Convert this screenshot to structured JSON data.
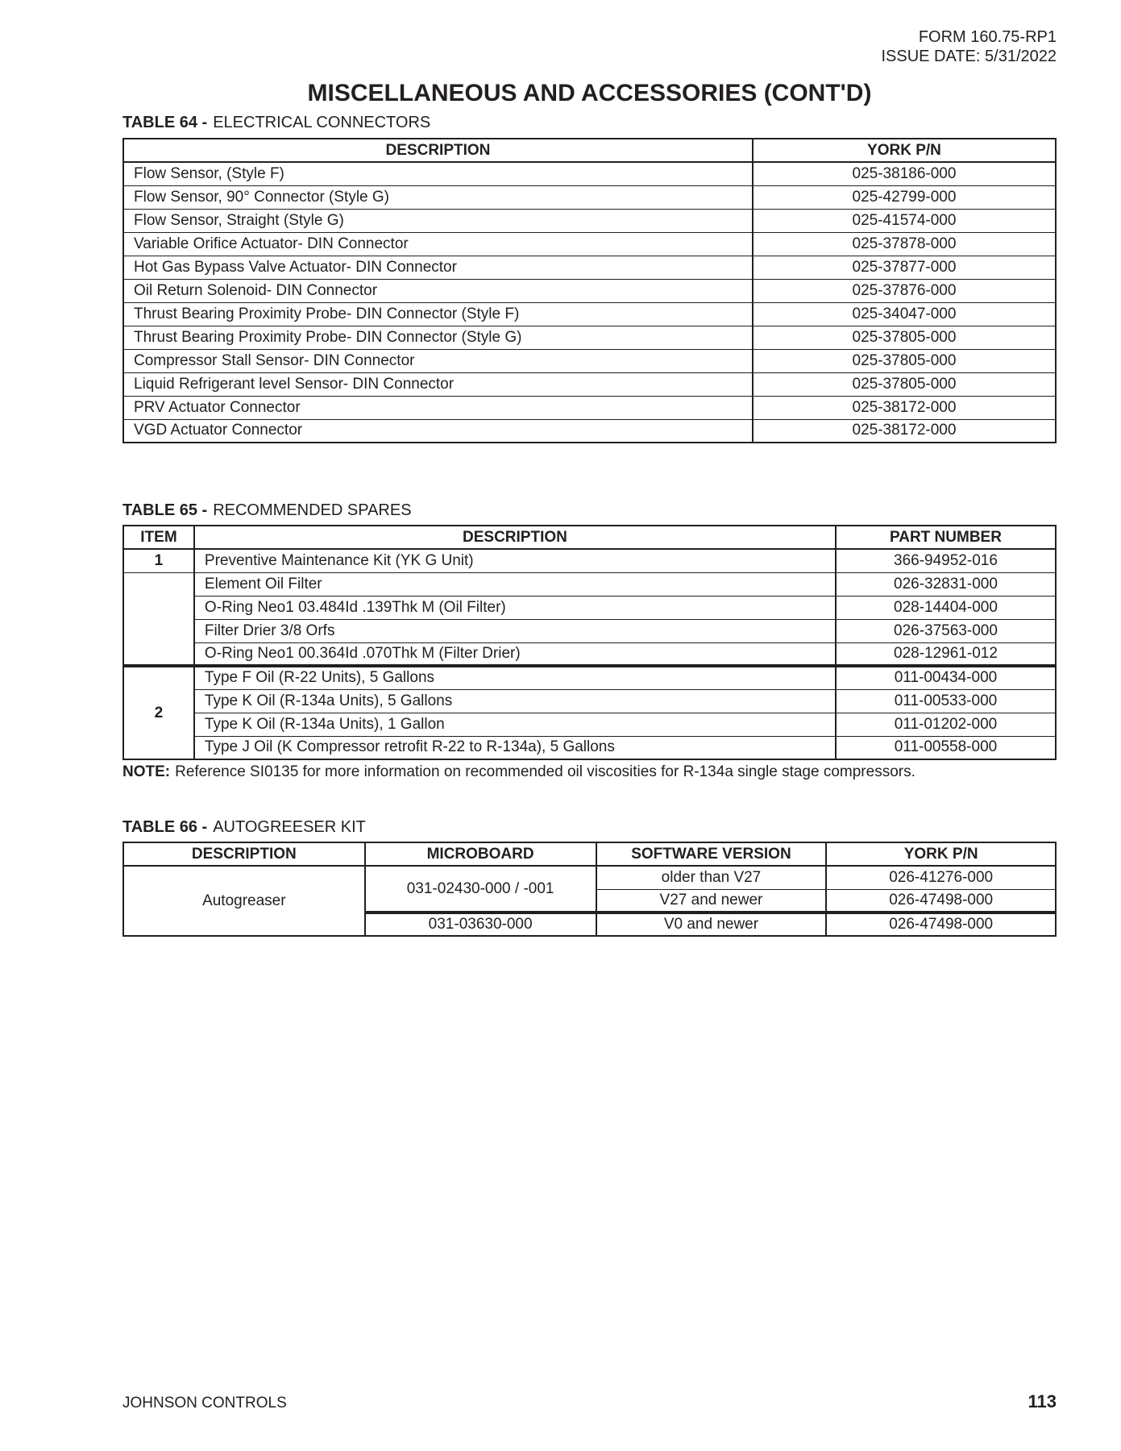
{
  "header": {
    "form": "FORM 160.75-RP1",
    "issue_date": "ISSUE DATE: 5/31/2022"
  },
  "title": "MISCELLANEOUS AND ACCESSORIES (CONT'D)",
  "table64": {
    "caption_bold": "TABLE 64 -",
    "caption_rest": "ELECTRICAL CONNECTORS",
    "headers": [
      "DESCRIPTION",
      "YORK P/N"
    ],
    "rows": [
      [
        "Flow Sensor, (Style F)",
        "025-38186-000"
      ],
      [
        "Flow Sensor, 90° Connector (Style G)",
        "025-42799-000"
      ],
      [
        "Flow Sensor, Straight (Style G)",
        "025-41574-000"
      ],
      [
        "Variable Orifice Actuator- DIN Connector",
        "025-37878-000"
      ],
      [
        "Hot Gas Bypass Valve Actuator- DIN Connector",
        "025-37877-000"
      ],
      [
        "Oil Return Solenoid- DIN Connector",
        "025-37876-000"
      ],
      [
        "Thrust Bearing Proximity Probe- DIN Connector (Style F)",
        "025-34047-000"
      ],
      [
        "Thrust Bearing Proximity Probe- DIN Connector (Style G)",
        "025-37805-000"
      ],
      [
        "Compressor Stall Sensor- DIN Connector",
        "025-37805-000"
      ],
      [
        "Liquid Refrigerant level Sensor- DIN Connector",
        "025-37805-000"
      ],
      [
        "PRV Actuator Connector",
        "025-38172-000"
      ],
      [
        "VGD Actuator Connector",
        "025-38172-000"
      ]
    ]
  },
  "table65": {
    "caption_bold": "TABLE 65 -",
    "caption_rest": "RECOMMENDED SPARES",
    "headers": [
      "ITEM",
      "DESCRIPTION",
      "PART NUMBER"
    ],
    "group1": {
      "item": "1",
      "rows": [
        [
          "Preventive Maintenance Kit (YK G Unit)",
          "366-94952-016"
        ],
        [
          "Element Oil Filter",
          "026-32831-000"
        ],
        [
          "O-Ring Neo1 03.484Id .139Thk M (Oil Filter)",
          "028-14404-000"
        ],
        [
          "Filter Drier 3/8 Orfs",
          "026-37563-000"
        ],
        [
          "O-Ring Neo1 00.364Id .070Thk M (Filter Drier)",
          "028-12961-012"
        ]
      ]
    },
    "group2": {
      "item": "2",
      "rows": [
        [
          "Type F Oil (R-22 Units), 5 Gallons",
          "011-00434-000"
        ],
        [
          "Type K Oil (R-134a Units), 5 Gallons",
          "011-00533-000"
        ],
        [
          "Type K Oil (R-134a Units), 1 Gallon",
          "011-01202-000"
        ],
        [
          "Type J Oil (K Compressor retrofit R-22 to R-134a), 5 Gallons",
          "011-00558-000"
        ]
      ]
    }
  },
  "note": {
    "label": "NOTE:",
    "text": "Reference SI0135 for more information on recommended oil viscosities for R-134a single stage compressors."
  },
  "table66": {
    "caption_bold": "TABLE 66 -",
    "caption_rest": "AUTOGREESER KIT",
    "headers": [
      "DESCRIPTION",
      "MICROBOARD",
      "SOFTWARE VERSION",
      "YORK P/N"
    ],
    "description": "Autogreaser",
    "microboard1": "031-02430-000 / -001",
    "microboard2": "031-03630-000",
    "rows": [
      [
        "older than V27",
        "026-41276-000"
      ],
      [
        "V27 and newer",
        "026-47498-000"
      ],
      [
        "V0 and newer",
        "026-47498-000"
      ]
    ]
  },
  "footer": {
    "company": "JOHNSON CONTROLS",
    "page_number": "113"
  }
}
